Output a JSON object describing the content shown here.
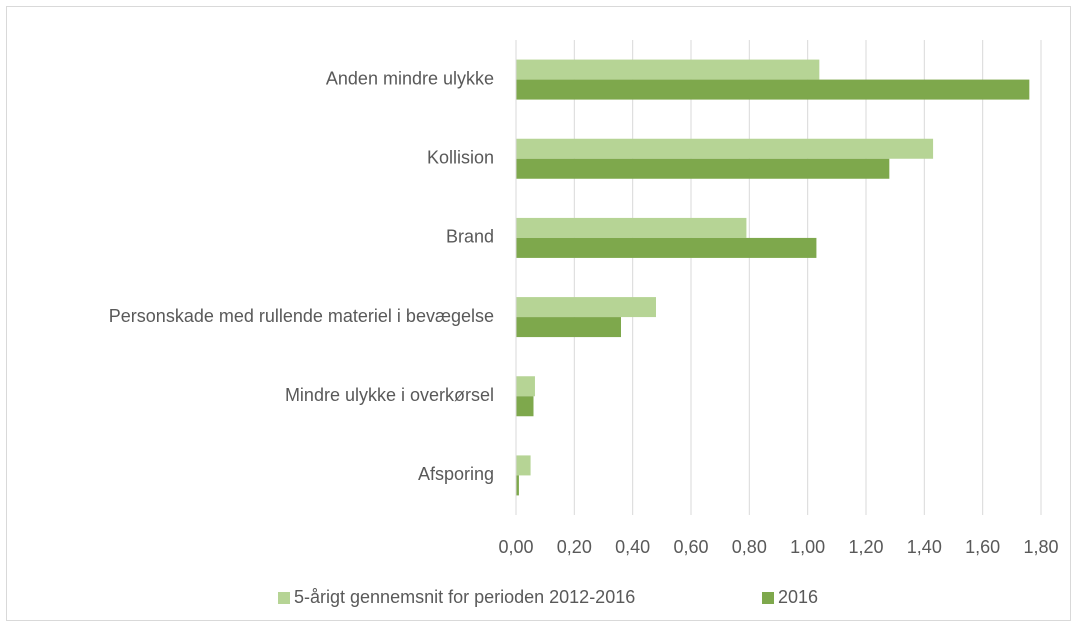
{
  "chart_data": {
    "type": "hbar",
    "categories": [
      "Anden mindre ulykke",
      "Kollision",
      "Brand",
      "Personskade med rullende materiel i bevægelse",
      "Mindre ulykke i overkørsel",
      "Afsporing"
    ],
    "series": [
      {
        "name": "5-årigt gennemsnit for perioden 2012-2016",
        "color": "#b6d495",
        "values": [
          1.04,
          1.43,
          0.79,
          0.48,
          0.065,
          0.05
        ]
      },
      {
        "name": "2016",
        "color": "#7ea84c",
        "values": [
          1.76,
          1.28,
          1.03,
          0.36,
          0.06,
          0.01
        ]
      }
    ],
    "xlim": [
      0,
      1.8
    ],
    "xticks": [
      {
        "value": 0,
        "label": "0,00"
      },
      {
        "value": 0.2,
        "label": "0,20"
      },
      {
        "value": 0.4,
        "label": "0,40"
      },
      {
        "value": 0.6,
        "label": "0,60"
      },
      {
        "value": 0.8,
        "label": "0,80"
      },
      {
        "value": 1,
        "label": "1,00"
      },
      {
        "value": 1.2,
        "label": "1,20"
      },
      {
        "value": 1.4,
        "label": "1,40"
      },
      {
        "value": 1.6,
        "label": "1,60"
      },
      {
        "value": 1.8,
        "label": "1,80"
      }
    ],
    "grid": true,
    "legend": "bottom"
  }
}
